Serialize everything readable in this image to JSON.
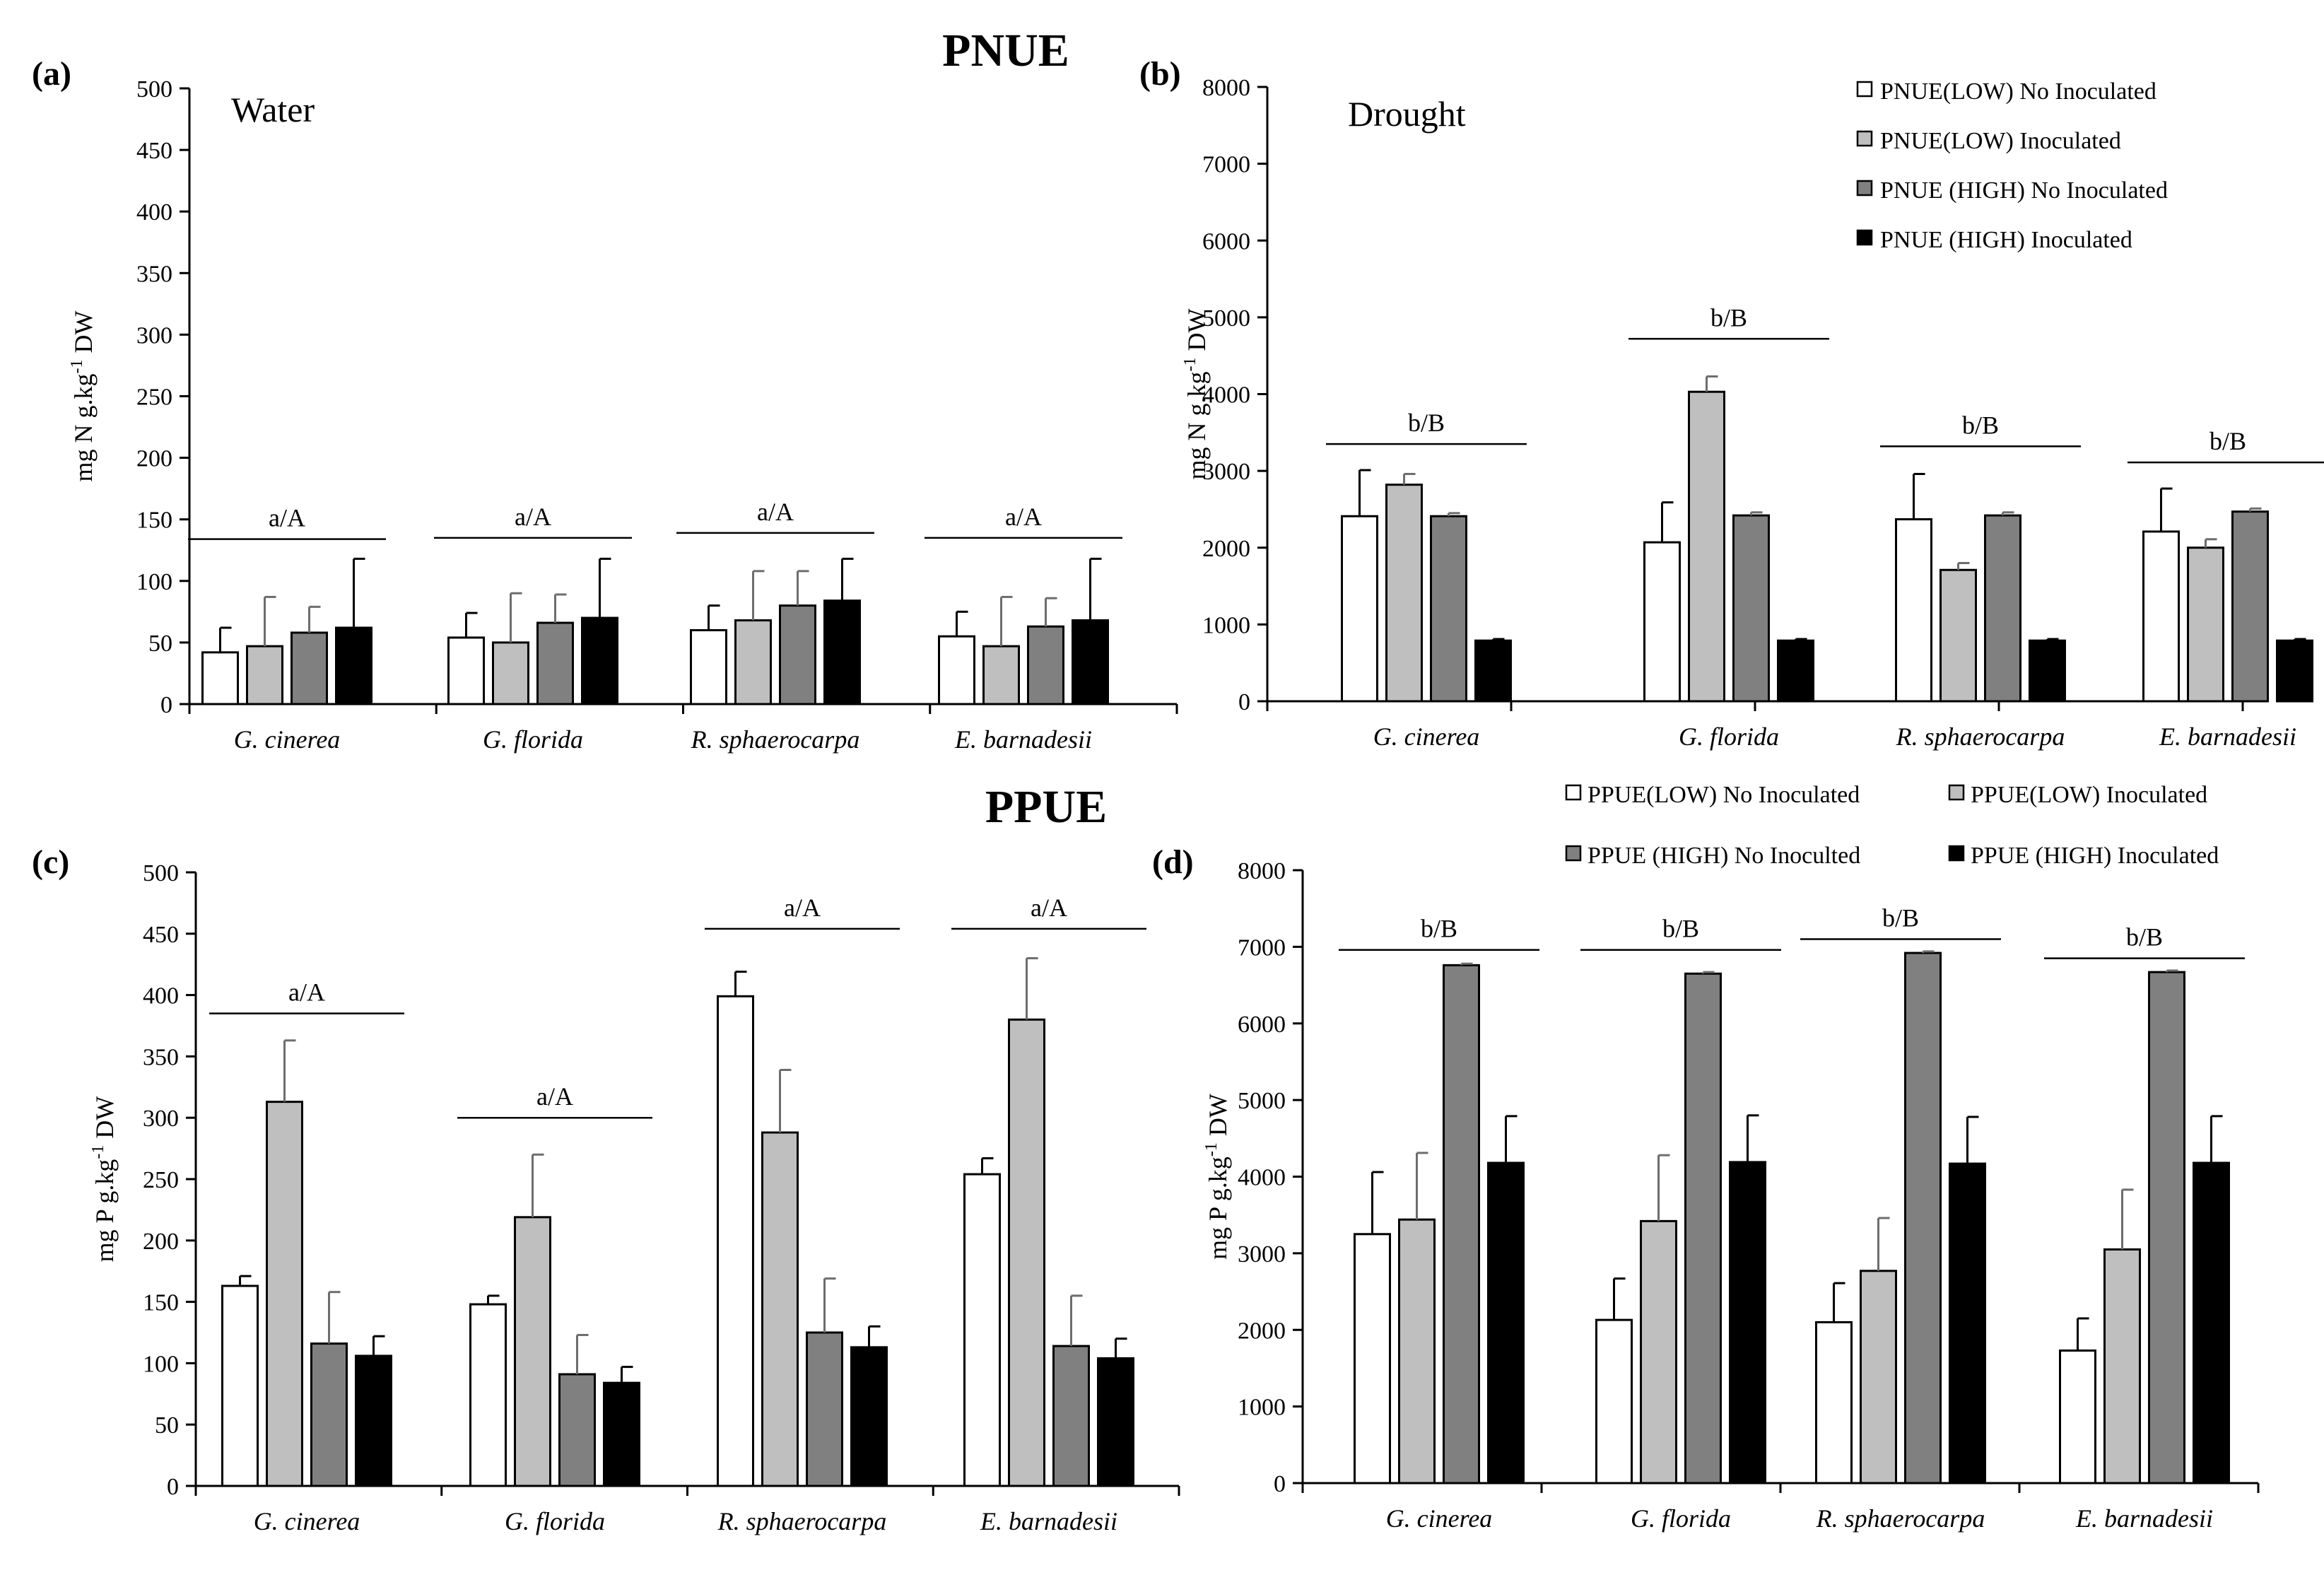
{
  "figure": {
    "title_top": "PNUE",
    "title_bottom": "PPUE"
  },
  "colors": {
    "low_no": "#ffffff",
    "low_inoc": "#bfbfbf",
    "high_no": "#808080",
    "high_inoc": "#000000",
    "axis": "#000000"
  },
  "legend_top": [
    {
      "label": "PNUE(LOW) No Inoculated",
      "color": "#ffffff"
    },
    {
      "label": "PNUE(LOW) Inoculated",
      "color": "#bfbfbf"
    },
    {
      "label": "PNUE (HIGH) No Inoculated",
      "color": "#808080"
    },
    {
      "label": "PNUE (HIGH) Inoculated",
      "color": "#000000"
    }
  ],
  "legend_bottom": [
    {
      "label": "PPUE(LOW) No Inoculated",
      "color": "#ffffff"
    },
    {
      "label": "PPUE(LOW) Inoculated",
      "color": "#bfbfbf"
    },
    {
      "label": "PPUE (HIGH) No Inoculted",
      "color": "#808080"
    },
    {
      "label": "PPUE (HIGH) Inoculated",
      "color": "#000000"
    }
  ],
  "chart_data": [
    {
      "type": "bar",
      "panel": "(a)",
      "condition": "Water",
      "ylabel_main": "mg N g.kg",
      "ylabel_sup": "-1",
      "ylabel_tail": " DW",
      "ylim": [
        0,
        500
      ],
      "yticks": [
        "0",
        "50",
        "100",
        "150",
        "200",
        "250",
        "300",
        "350",
        "400",
        "450",
        "500"
      ],
      "categories": [
        "G. cinerea",
        "G. florida",
        "R. sphaerocarpa",
        "E. barnadesii"
      ],
      "series": [
        {
          "name": "PNUE(LOW) No Inoculated",
          "values": [
            42,
            54,
            60,
            55
          ],
          "errors": [
            20,
            20,
            20,
            20
          ]
        },
        {
          "name": "PNUE(LOW) Inoculated",
          "values": [
            47,
            50,
            68,
            47
          ],
          "errors": [
            40,
            40,
            40,
            40
          ]
        },
        {
          "name": "PNUE (HIGH) No Inoculated",
          "values": [
            58,
            66,
            80,
            63
          ],
          "errors": [
            21,
            23,
            28,
            23
          ]
        },
        {
          "name": "PNUE (HIGH) Inoculated",
          "values": [
            62,
            70,
            84,
            68
          ],
          "errors": [
            56,
            48,
            34,
            50
          ]
        }
      ],
      "groups": [
        {
          "label": "a/A",
          "line_value": 134
        },
        {
          "label": "a/A",
          "line_value": 135
        },
        {
          "label": "a/A",
          "line_value": 139
        },
        {
          "label": "a/A",
          "line_value": 135
        }
      ]
    },
    {
      "type": "bar",
      "panel": "(b)",
      "condition": "Drought",
      "ylabel_main": "mg N g.kg",
      "ylabel_sup": "-1",
      "ylabel_tail": " DW",
      "ylim": [
        0,
        8000
      ],
      "yticks": [
        "0",
        "1000",
        "2000",
        "3000",
        "4000",
        "5000",
        "6000",
        "7000",
        "8000"
      ],
      "categories": [
        "G. cinerea",
        "G. florida",
        "R. sphaerocarpa",
        "E. barnadesii"
      ],
      "series": [
        {
          "name": "PNUE(LOW) No Inoculated",
          "values": [
            2410,
            2070,
            2370,
            2210
          ],
          "errors": [
            600,
            520,
            590,
            560
          ]
        },
        {
          "name": "PNUE(LOW) Inoculated",
          "values": [
            2820,
            4030,
            1710,
            2000
          ],
          "errors": [
            140,
            200,
            90,
            110
          ]
        },
        {
          "name": "PNUE (HIGH) No Inoculated",
          "values": [
            2410,
            2420,
            2420,
            2470
          ],
          "errors": [
            40,
            40,
            40,
            40
          ]
        },
        {
          "name": "PNUE (HIGH) Inoculated",
          "values": [
            790,
            790,
            790,
            790
          ],
          "errors": [
            20,
            20,
            20,
            20
          ]
        }
      ],
      "groups": [
        {
          "label": "b/B",
          "line_value": 3350
        },
        {
          "label": "b/B",
          "line_value": 4720
        },
        {
          "label": "b/B",
          "line_value": 3320
        },
        {
          "label": "b/B",
          "line_value": 3110
        }
      ]
    },
    {
      "type": "bar",
      "panel": "(c)",
      "condition": "",
      "ylabel_main": "mg P g.kg",
      "ylabel_sup": "-1",
      "ylabel_tail": " DW",
      "ylim": [
        0,
        500
      ],
      "yticks": [
        "0",
        "50",
        "100",
        "150",
        "200",
        "250",
        "300",
        "350",
        "400",
        "450",
        "500"
      ],
      "categories": [
        "G. cinerea",
        "G. florida",
        "R. sphaerocarpa",
        "E. barnadesii"
      ],
      "series": [
        {
          "name": "PPUE(LOW) No Inoculated",
          "values": [
            163,
            148,
            399,
            254
          ],
          "errors": [
            8,
            7,
            20,
            13
          ]
        },
        {
          "name": "PPUE(LOW) Inoculated",
          "values": [
            313,
            219,
            288,
            380
          ],
          "errors": [
            50,
            51,
            51,
            50
          ]
        },
        {
          "name": "PPUE (HIGH) No Inoculted",
          "values": [
            116,
            91,
            125,
            114
          ],
          "errors": [
            42,
            32,
            44,
            41
          ]
        },
        {
          "name": "PPUE (HIGH) Inoculated",
          "values": [
            106,
            84,
            113,
            104
          ],
          "errors": [
            16,
            13,
            17,
            16
          ]
        }
      ],
      "groups": [
        {
          "label": "a/A",
          "line_value": 385
        },
        {
          "label": "a/A",
          "line_value": 300
        },
        {
          "label": "a/A",
          "line_value": 454
        },
        {
          "label": "a/A",
          "line_value": 454
        }
      ]
    },
    {
      "type": "bar",
      "panel": "(d)",
      "condition": "",
      "ylabel_main": "mg P g.kg",
      "ylabel_sup": "-1",
      "ylabel_tail": " DW",
      "ylim": [
        0,
        8000
      ],
      "yticks": [
        "0",
        "1000",
        "2000",
        "3000",
        "4000",
        "5000",
        "6000",
        "7000",
        "8000"
      ],
      "categories": [
        "G. cinerea",
        "G. florida",
        "R. sphaerocarpa",
        "E. barnadesii"
      ],
      "series": [
        {
          "name": "PPUE(LOW) No Inoculated",
          "values": [
            3250,
            2130,
            2100,
            1730
          ],
          "errors": [
            810,
            540,
            510,
            420
          ]
        },
        {
          "name": "PPUE(LOW) Inoculated",
          "values": [
            3440,
            3420,
            2770,
            3050
          ],
          "errors": [
            870,
            860,
            690,
            780
          ]
        },
        {
          "name": "PPUE (HIGH) No Inoculted",
          "values": [
            6760,
            6650,
            6920,
            6670
          ],
          "errors": [
            20,
            20,
            20,
            20
          ]
        },
        {
          "name": "PPUE (HIGH) Inoculated",
          "values": [
            4180,
            4190,
            4170,
            4180
          ],
          "errors": [
            610,
            610,
            610,
            610
          ]
        }
      ],
      "groups": [
        {
          "label": "b/B",
          "line_value": 6960
        },
        {
          "label": "b/B",
          "line_value": 6960
        },
        {
          "label": "b/B",
          "line_value": 7100
        },
        {
          "label": "b/B",
          "line_value": 6850
        }
      ]
    }
  ]
}
